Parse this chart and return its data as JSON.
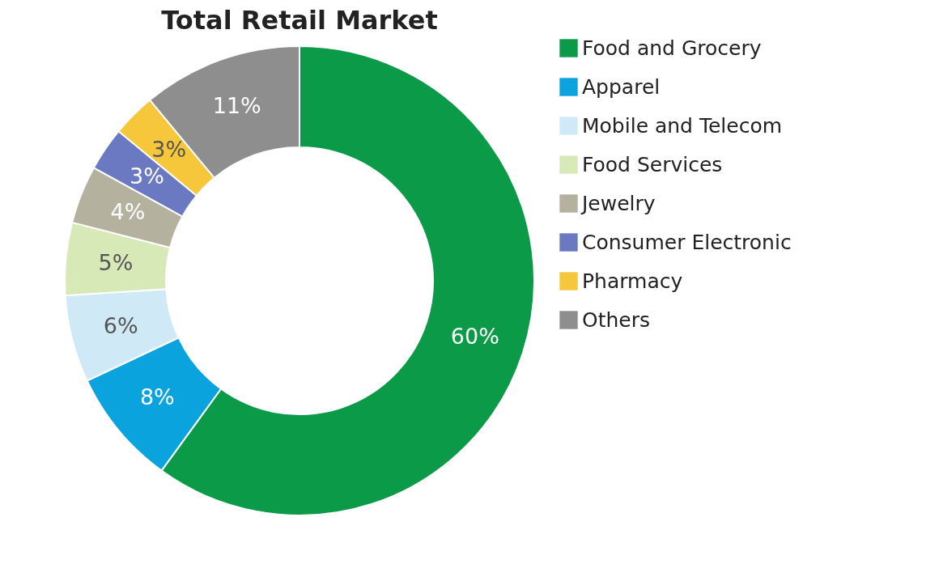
{
  "chart_data": {
    "type": "donut",
    "title": "Total Retail Market",
    "categories": [
      "Food and Grocery",
      "Apparel",
      "Mobile and Telecom",
      "Food Services",
      "Jewelry",
      "Consumer Electronic",
      "Pharmacy",
      "Others"
    ],
    "values": [
      60,
      8,
      6,
      5,
      4,
      3,
      3,
      11
    ],
    "colors": [
      "#0a9a48",
      "#0ba3dd",
      "#cfe9f7",
      "#d8e9b8",
      "#b5b19f",
      "#6b79c2",
      "#f6c73a",
      "#8e8e8e"
    ],
    "value_labels": [
      "60%",
      "8%",
      "6%",
      "5%",
      "4%",
      "3%",
      "3%",
      "11%"
    ],
    "legend": "right"
  }
}
